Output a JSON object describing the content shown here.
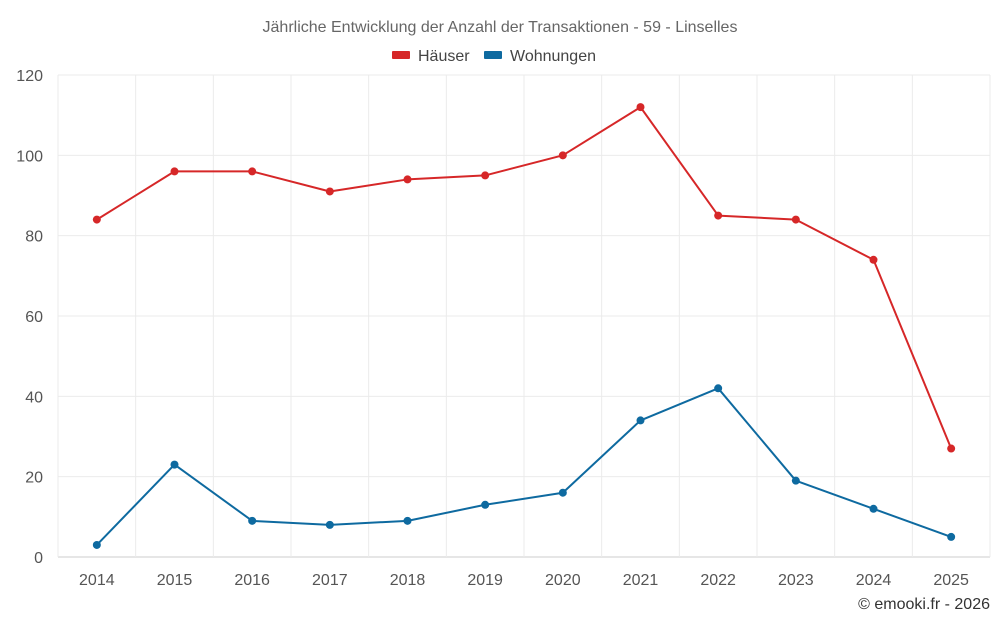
{
  "chart_data": {
    "type": "line",
    "title": "Jährliche Entwicklung der Anzahl der Transaktionen - 59 - Linselles",
    "categories": [
      "2014",
      "2015",
      "2016",
      "2017",
      "2018",
      "2019",
      "2020",
      "2021",
      "2022",
      "2023",
      "2024",
      "2025"
    ],
    "series": [
      {
        "name": "Häuser",
        "color": "#d62728",
        "values": [
          84,
          96,
          96,
          91,
          94,
          95,
          100,
          112,
          85,
          84,
          74,
          27
        ]
      },
      {
        "name": "Wohnungen",
        "color": "#0e6aa0",
        "values": [
          3,
          23,
          9,
          8,
          9,
          13,
          16,
          34,
          42,
          19,
          12,
          5
        ]
      }
    ],
    "yticks": [
      "0",
      "20",
      "40",
      "60",
      "80",
      "100",
      "120"
    ],
    "ylim": [
      0,
      120
    ],
    "grid": true,
    "legend_position": "top-center"
  },
  "credit": "© emooki.fr - 2026"
}
